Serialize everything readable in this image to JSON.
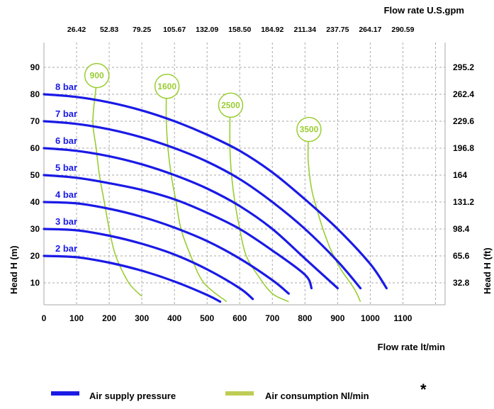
{
  "chart_data": {
    "type": "line",
    "xlabel": "Flow rate  lt/min",
    "x2label": "Flow rate U.S.gpm",
    "ylabel": "Head H (m)",
    "y2label": "Head H (ft)",
    "xlim": [
      0,
      1200
    ],
    "ylim": [
      0,
      95
    ],
    "grid": true,
    "x_ticks": [
      "0",
      "100",
      "200",
      "300",
      "400",
      "500",
      "600",
      "700",
      "800",
      "900",
      "1000",
      "1100"
    ],
    "x2_ticks": [
      "26.42",
      "52.83",
      "79.25",
      "105.67",
      "132.09",
      "158.50",
      "184.92",
      "211.34",
      "237.75",
      "264.17",
      "290.59"
    ],
    "y_ticks": [
      "10",
      "20",
      "30",
      "40",
      "50",
      "60",
      "70",
      "80",
      "90"
    ],
    "y2_ticks": [
      "32.8",
      "65.6",
      "98.4",
      "131.2",
      "164",
      "196.8",
      "229.6",
      "262.4",
      "295.2"
    ],
    "colors": {
      "pressure": "#1a1ae6",
      "consumption": "#9acd32",
      "grid": "#aaaaaa"
    },
    "series": [
      {
        "name": "2 bar",
        "x": [
          0,
          100,
          200,
          300,
          400,
          500,
          540
        ],
        "y": [
          20,
          19.5,
          17.5,
          14.5,
          10.5,
          5.5,
          3
        ]
      },
      {
        "name": "3 bar",
        "x": [
          0,
          100,
          200,
          300,
          400,
          500,
          600,
          640
        ],
        "y": [
          30,
          29.5,
          27.5,
          24.5,
          20.5,
          15,
          8,
          4
        ]
      },
      {
        "name": "4 bar",
        "x": [
          0,
          100,
          200,
          300,
          400,
          500,
          600,
          700,
          750
        ],
        "y": [
          40,
          39.5,
          37.5,
          34.5,
          30.5,
          25.5,
          19,
          11,
          6
        ]
      },
      {
        "name": "5 bar",
        "x": [
          0,
          100,
          200,
          300,
          400,
          500,
          600,
          700,
          800,
          820
        ],
        "y": [
          50,
          49,
          47,
          44.5,
          41,
          36,
          30,
          22,
          13,
          8
        ]
      },
      {
        "name": "6 bar",
        "x": [
          0,
          100,
          200,
          300,
          400,
          500,
          600,
          700,
          800,
          900
        ],
        "y": [
          60,
          59,
          57,
          54,
          50,
          45,
          38.5,
          30,
          19,
          8
        ]
      },
      {
        "name": "7 bar",
        "x": [
          0,
          100,
          200,
          300,
          400,
          500,
          600,
          700,
          800,
          900,
          970
        ],
        "y": [
          70,
          69,
          67,
          64,
          60,
          55,
          48.5,
          40,
          30,
          18,
          8
        ]
      },
      {
        "name": "8 bar",
        "x": [
          0,
          100,
          200,
          300,
          400,
          500,
          600,
          700,
          800,
          900,
          1000,
          1050
        ],
        "y": [
          80,
          79,
          77,
          74,
          70,
          65,
          59,
          51,
          41,
          30,
          17,
          8
        ]
      }
    ],
    "consumption_series": [
      {
        "name": "900",
        "x": [
          160,
          150,
          160,
          170,
          185,
          200,
          220,
          260,
          300
        ],
        "y": [
          83,
          70,
          60,
          50,
          40,
          30,
          20,
          10,
          5
        ]
      },
      {
        "name": "1600",
        "x": [
          375,
          375,
          380,
          390,
          405,
          420,
          450,
          490,
          560
        ],
        "y": [
          79,
          70,
          60,
          50,
          40,
          30,
          20,
          10,
          3
        ]
      },
      {
        "name": "2500",
        "x": [
          570,
          570,
          575,
          585,
          600,
          620,
          660,
          700,
          750
        ],
        "y": [
          72,
          60,
          50,
          40,
          30,
          20,
          12,
          6,
          3
        ]
      },
      {
        "name": "3500",
        "x": [
          810,
          810,
          820,
          835,
          855,
          880,
          910,
          950,
          970
        ],
        "y": [
          63,
          55,
          45,
          38,
          30,
          22,
          15,
          8,
          3
        ]
      }
    ]
  },
  "legend": {
    "pressure_label": "Air supply pressure",
    "consumption_label": "Air consumption  Nl/min",
    "asterisk": "*"
  }
}
